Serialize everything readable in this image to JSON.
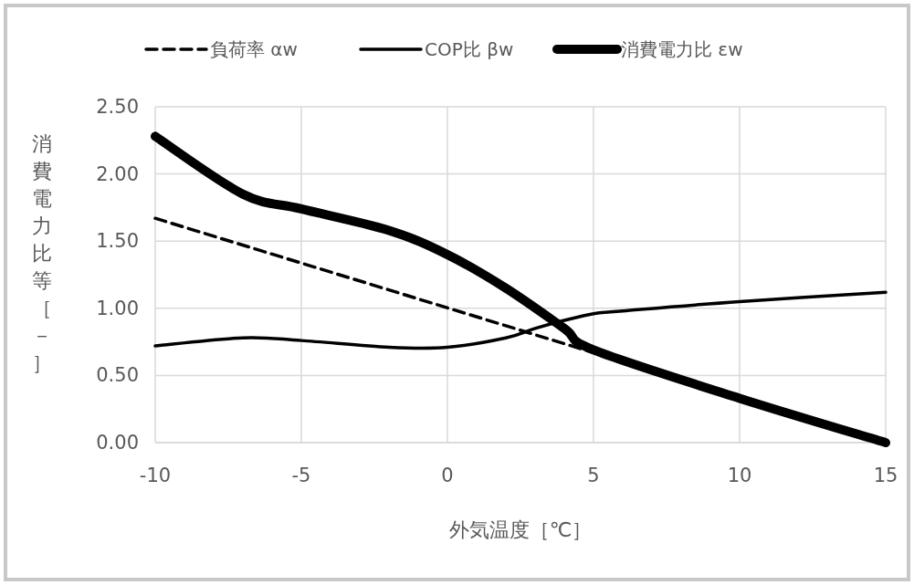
{
  "chart_data": {
    "type": "line",
    "xlabel": "外気温度［℃］",
    "ylabel": "消費電力比等［－］",
    "xlim": [
      -10,
      15
    ],
    "xticks": [
      -10,
      -5,
      0,
      5,
      10,
      15
    ],
    "ylim": [
      0,
      2.5
    ],
    "yticks": [
      {
        "value": 0,
        "label": "0.00"
      },
      {
        "value": 0.5,
        "label": "0.50"
      },
      {
        "value": 1,
        "label": "1.00"
      },
      {
        "value": 1.5,
        "label": "1.50"
      },
      {
        "value": 2,
        "label": "2.00"
      },
      {
        "value": 2.5,
        "label": "2.50"
      }
    ],
    "grid": true,
    "legend": "top",
    "marker": "none",
    "series": [
      {
        "name": "負荷率 αw",
        "color": "#000000",
        "line_style": "dashed",
        "x": [
          -10,
          5
        ],
        "values": [
          1.67,
          0.67
        ]
      },
      {
        "name": "COP比 βw",
        "color": "#000000",
        "line_style": "solid",
        "x": [
          -10,
          -7,
          -5,
          -2,
          0,
          2,
          3,
          4,
          5,
          6,
          10,
          15
        ],
        "values": [
          0.72,
          0.78,
          0.76,
          0.71,
          0.71,
          0.78,
          0.85,
          0.91,
          0.96,
          0.98,
          1.05,
          1.12
        ]
      },
      {
        "name": "消費電力比 εw",
        "color": "#000000",
        "line_style": "solid",
        "x": [
          -10,
          -7,
          -5,
          -2,
          0,
          2,
          4,
          5,
          10,
          15
        ],
        "values": [
          2.28,
          1.85,
          1.74,
          1.58,
          1.4,
          1.15,
          0.85,
          0.69,
          0.33,
          0.0
        ]
      }
    ]
  }
}
